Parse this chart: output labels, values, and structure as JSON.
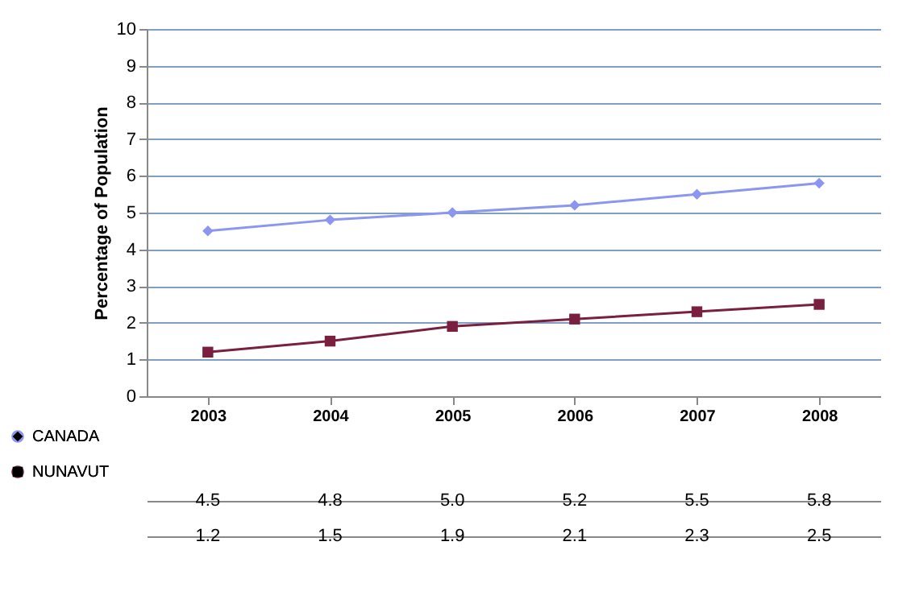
{
  "chart_data": {
    "type": "line",
    "ylabel": "Percentage of Population",
    "categories": [
      "2003",
      "2004",
      "2005",
      "2006",
      "2007",
      "2008"
    ],
    "ylim": [
      0,
      10
    ],
    "yticks": [
      0,
      1,
      2,
      3,
      4,
      5,
      6,
      7,
      8,
      9,
      10
    ],
    "grid": "y",
    "legend": "bottom left",
    "series": [
      {
        "name": "CANADA",
        "color": "#8b96f0",
        "marker": "diamond",
        "values": [
          4.5,
          4.8,
          5.0,
          5.2,
          5.5,
          5.8
        ],
        "value_labels": [
          "4.5",
          "4.8",
          "5.0",
          "5.2",
          "5.5",
          "5.8"
        ]
      },
      {
        "name": "NUNAVUT",
        "color": "#7b1f3f",
        "marker": "square",
        "values": [
          1.2,
          1.5,
          1.9,
          2.1,
          2.3,
          2.5
        ],
        "value_labels": [
          "1.2",
          "1.5",
          "1.9",
          "2.1",
          "2.3",
          "2.5"
        ]
      }
    ]
  }
}
